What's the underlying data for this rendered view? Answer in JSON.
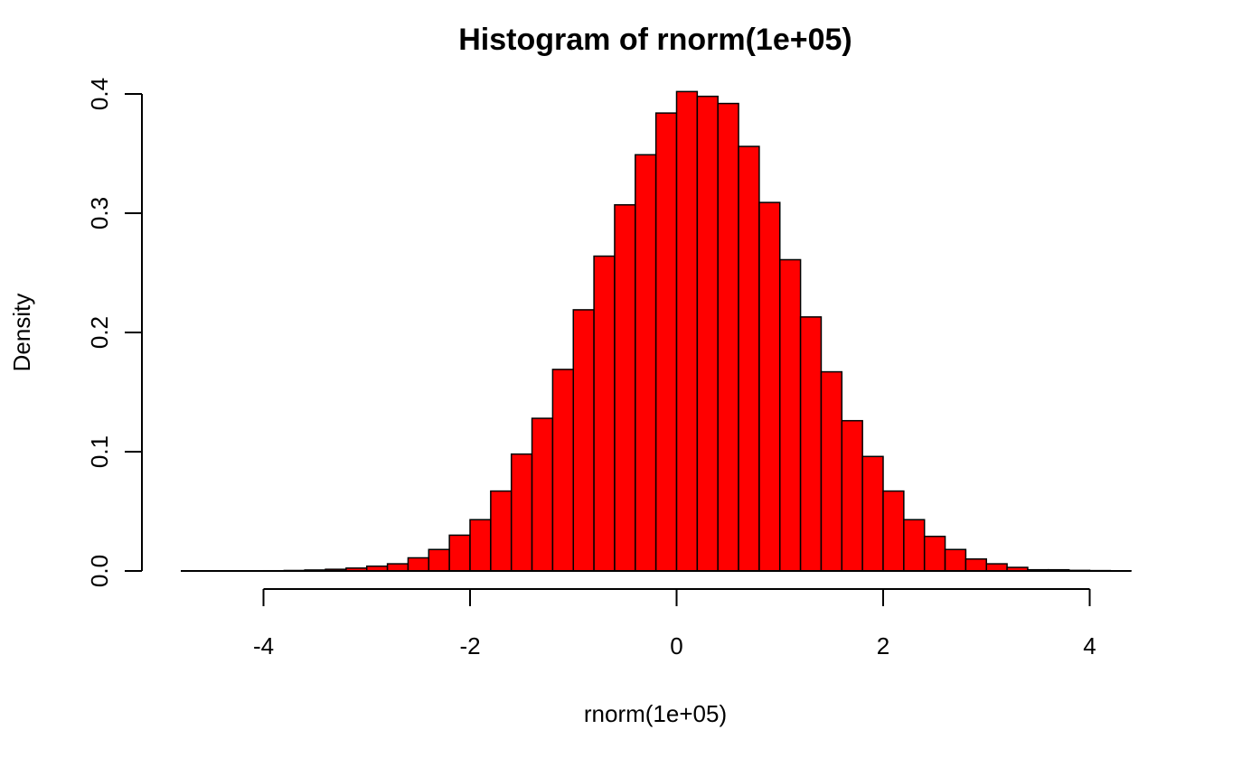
{
  "chart_data": {
    "type": "bar",
    "title": "Histogram of rnorm(1e+05)",
    "xlabel": "rnorm(1e+05)",
    "ylabel": "Density",
    "xlim": [
      -4.8,
      4.4
    ],
    "ylim": [
      0,
      0.4
    ],
    "x_ticks": [
      -4,
      -2,
      0,
      2,
      4
    ],
    "x_tick_labels": [
      "-4",
      "-2",
      "0",
      "2",
      "4"
    ],
    "y_ticks": [
      0,
      0.1,
      0.2,
      0.3,
      0.4
    ],
    "y_tick_labels": [
      "0.0",
      "0.1",
      "0.2",
      "0.3",
      "0.4"
    ],
    "bin_width": 0.2,
    "bin_starts": [
      -4.8,
      -4.6,
      -4.4,
      -4.2,
      -4.0,
      -3.8,
      -3.6,
      -3.4,
      -3.2,
      -3.0,
      -2.8,
      -2.6,
      -2.4,
      -2.2,
      -2.0,
      -1.8,
      -1.6,
      -1.4,
      -1.2,
      -1.0,
      -0.8,
      -0.6,
      -0.4,
      -0.2,
      0.0,
      0.2,
      0.4,
      0.6,
      0.8,
      1.0,
      1.2,
      1.4,
      1.6,
      1.8,
      2.0,
      2.2,
      2.4,
      2.6,
      2.8,
      3.0,
      3.2,
      3.4,
      3.6,
      3.8,
      4.0,
      4.2
    ],
    "values": [
      0.0,
      0.0,
      0.0,
      0.0001,
      0.0002,
      0.0004,
      0.0008,
      0.0014,
      0.0024,
      0.004,
      0.006,
      0.011,
      0.018,
      0.03,
      0.043,
      0.067,
      0.098,
      0.128,
      0.169,
      0.219,
      0.264,
      0.307,
      0.349,
      0.384,
      0.402,
      0.398,
      0.392,
      0.356,
      0.309,
      0.261,
      0.213,
      0.167,
      0.126,
      0.096,
      0.067,
      0.043,
      0.029,
      0.018,
      0.01,
      0.006,
      0.003,
      0.001,
      0.001,
      0.0005,
      0.0003,
      0.0001
    ],
    "bar_color": "#ff0000",
    "bar_border_color": "#000000",
    "grid": false
  }
}
